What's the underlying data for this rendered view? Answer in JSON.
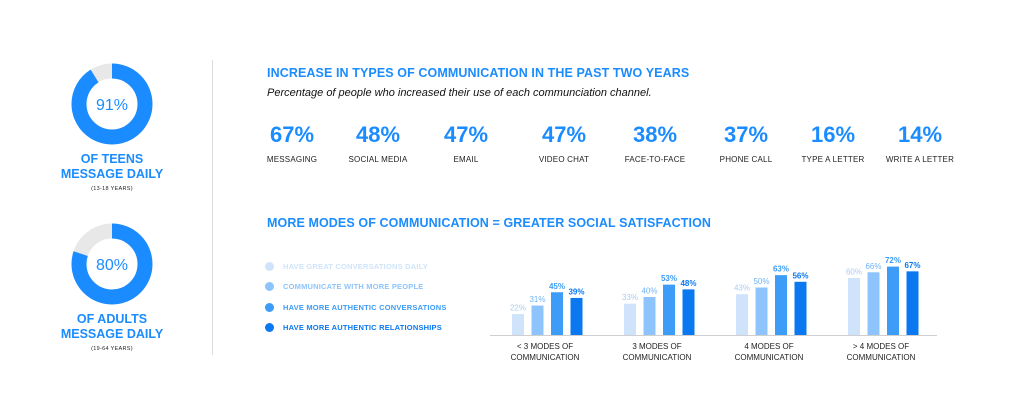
{
  "donuts": [
    {
      "value_text": "91%",
      "fraction": 0.91,
      "label_line1": "OF TEENS",
      "label_line2": "MESSAGE DAILY",
      "sub": "(13-18 YEARS)"
    },
    {
      "value_text": "80%",
      "fraction": 0.8,
      "label_line1": "OF ADULTS",
      "label_line2": "MESSAGE DAILY",
      "sub": "(19-64 YEARS)"
    }
  ],
  "section1": {
    "title": "INCREASE IN TYPES OF COMMUNICATION IN THE PAST TWO YEARS",
    "subtitle": "Percentage of people who increased their use of each communciation channel.",
    "stats": [
      {
        "value": "67%",
        "label": "MESSAGING"
      },
      {
        "value": "48%",
        "label": "SOCIAL MEDIA"
      },
      {
        "value": "47%",
        "label": "EMAIL"
      },
      {
        "value": "47%",
        "label": "VIDEO CHAT"
      },
      {
        "value": "38%",
        "label": "FACE-TO-FACE"
      },
      {
        "value": "37%",
        "label": "PHONE CALL"
      },
      {
        "value": "16%",
        "label": "TYPE A LETTER"
      },
      {
        "value": "14%",
        "label": "WRITE A LETTER"
      }
    ]
  },
  "section2": {
    "title": "MORE MODES OF COMMUNICATION = GREATER SOCIAL SATISFACTION"
  },
  "colors": {
    "accent": "#1a8cff",
    "donut_track": "#e8e8e8",
    "series": [
      "#cfe4fa",
      "#8cc4fb",
      "#3d9cf7",
      "#0a78f0"
    ]
  },
  "chart_data": {
    "type": "bar",
    "categories": [
      "< 3 MODES OF COMMUNICATION",
      "3 MODES OF COMMUNICATION",
      "4 MODES OF COMMUNICATION",
      "> 4 MODES OF COMMUNICATION"
    ],
    "category_lines": [
      [
        "< 3 MODES OF",
        "COMMUNICATION"
      ],
      [
        "3 MODES OF",
        "COMMUNICATION"
      ],
      [
        "4 MODES OF",
        "COMMUNICATION"
      ],
      [
        "> 4 MODES OF",
        "COMMUNICATION"
      ]
    ],
    "series": [
      {
        "name": "HAVE GREAT CONVERSATIONS DAILY",
        "values": [
          22,
          33,
          43,
          60
        ]
      },
      {
        "name": "COMMUNICATE WITH MORE PEOPLE",
        "values": [
          31,
          40,
          50,
          66
        ]
      },
      {
        "name": "HAVE MORE AUTHENTIC CONVERSATIONS",
        "values": [
          45,
          53,
          63,
          72
        ]
      },
      {
        "name": "HAVE MORE AUTHENTIC RELATIONSHIPS",
        "values": [
          39,
          48,
          56,
          67
        ]
      }
    ],
    "value_suffix": "%",
    "legend_position": "left",
    "grid": false
  }
}
